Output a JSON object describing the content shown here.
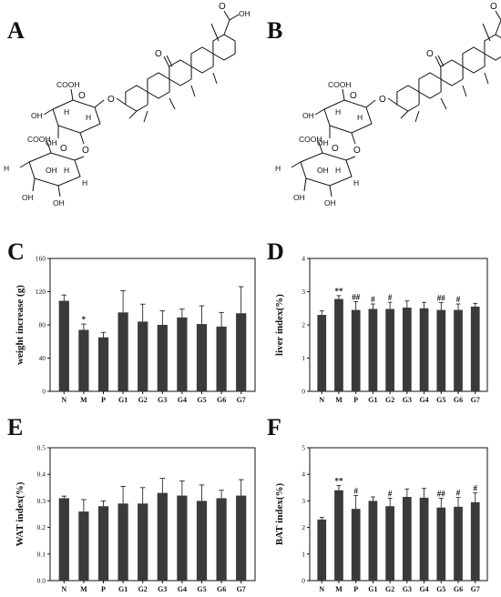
{
  "panels": {
    "A": "A",
    "B": "B",
    "C": "C",
    "D": "D",
    "E": "E",
    "F": "F"
  },
  "structure": {
    "cooh": "COOH",
    "oh": "OH",
    "h": "H",
    "o": "O"
  },
  "chart_data": [
    {
      "id": "C",
      "type": "bar",
      "categories": [
        "N",
        "M",
        "P",
        "G1",
        "G2",
        "G3",
        "G4",
        "G5",
        "G6",
        "G7"
      ],
      "values": [
        109,
        74,
        65,
        95,
        84,
        80,
        89,
        81,
        78,
        94
      ],
      "errors": [
        7,
        7,
        6,
        26,
        21,
        17,
        10,
        22,
        17,
        32
      ],
      "annotations": [
        "",
        "*",
        "",
        "",
        "",
        "",
        "",
        "",
        "",
        ""
      ],
      "ylabel": "weight increase (g)",
      "ylim": [
        0,
        160
      ],
      "yticks": [
        0,
        40,
        80,
        120,
        160
      ],
      "ytick_labels": [
        "0",
        "40",
        "80",
        "120",
        "160"
      ]
    },
    {
      "id": "D",
      "type": "bar",
      "categories": [
        "N",
        "M",
        "P",
        "G1",
        "G2",
        "G3",
        "G4",
        "G5",
        "G6",
        "G7"
      ],
      "values": [
        2.3,
        2.78,
        2.45,
        2.48,
        2.48,
        2.52,
        2.5,
        2.45,
        2.45,
        2.55
      ],
      "errors": [
        0.12,
        0.1,
        0.25,
        0.15,
        0.2,
        0.2,
        0.18,
        0.22,
        0.18,
        0.1
      ],
      "annotations": [
        "",
        "**",
        "##",
        "#",
        "#",
        "",
        "",
        "##",
        "#",
        ""
      ],
      "ylabel": "liver index(%)",
      "ylim": [
        0,
        4
      ],
      "yticks": [
        0,
        1,
        2,
        3,
        4
      ],
      "ytick_labels": [
        "0",
        "1",
        "2",
        "3",
        "4"
      ]
    },
    {
      "id": "E",
      "type": "bar",
      "categories": [
        "N",
        "M",
        "P",
        "G1",
        "G2",
        "G3",
        "G4",
        "G5",
        "G6",
        "G7"
      ],
      "values": [
        0.31,
        0.26,
        0.28,
        0.29,
        0.29,
        0.33,
        0.32,
        0.3,
        0.31,
        0.32
      ],
      "errors": [
        0.008,
        0.045,
        0.02,
        0.065,
        0.06,
        0.055,
        0.055,
        0.06,
        0.03,
        0.06
      ],
      "annotations": [
        "",
        "",
        "",
        "",
        "",
        "",
        "",
        "",
        "",
        ""
      ],
      "ylabel": "WAT index(%)",
      "ylim": [
        0,
        0.5
      ],
      "yticks": [
        0,
        0.1,
        0.2,
        0.3,
        0.4,
        0.5
      ],
      "ytick_labels": [
        "0.0",
        "0.1",
        "0.2",
        "0.3",
        "0.4",
        "0.5"
      ]
    },
    {
      "id": "F",
      "type": "bar",
      "categories": [
        "N",
        "M",
        "P",
        "G1",
        "G2",
        "G3",
        "G4",
        "G5",
        "G6",
        "G7"
      ],
      "values": [
        2.3,
        3.4,
        2.7,
        3.0,
        2.8,
        3.15,
        3.12,
        2.75,
        2.78,
        2.95
      ],
      "errors": [
        0.08,
        0.18,
        0.5,
        0.15,
        0.3,
        0.3,
        0.35,
        0.35,
        0.35,
        0.35
      ],
      "annotations": [
        "",
        "**",
        "#",
        "",
        "#",
        "",
        "",
        "##",
        "#",
        "#"
      ],
      "ylabel": "BAT index(%)",
      "ylim": [
        0,
        5
      ],
      "yticks": [
        0,
        1,
        2,
        3,
        4,
        5
      ],
      "ytick_labels": [
        "0",
        "1",
        "2",
        "3",
        "4",
        "5"
      ]
    }
  ]
}
